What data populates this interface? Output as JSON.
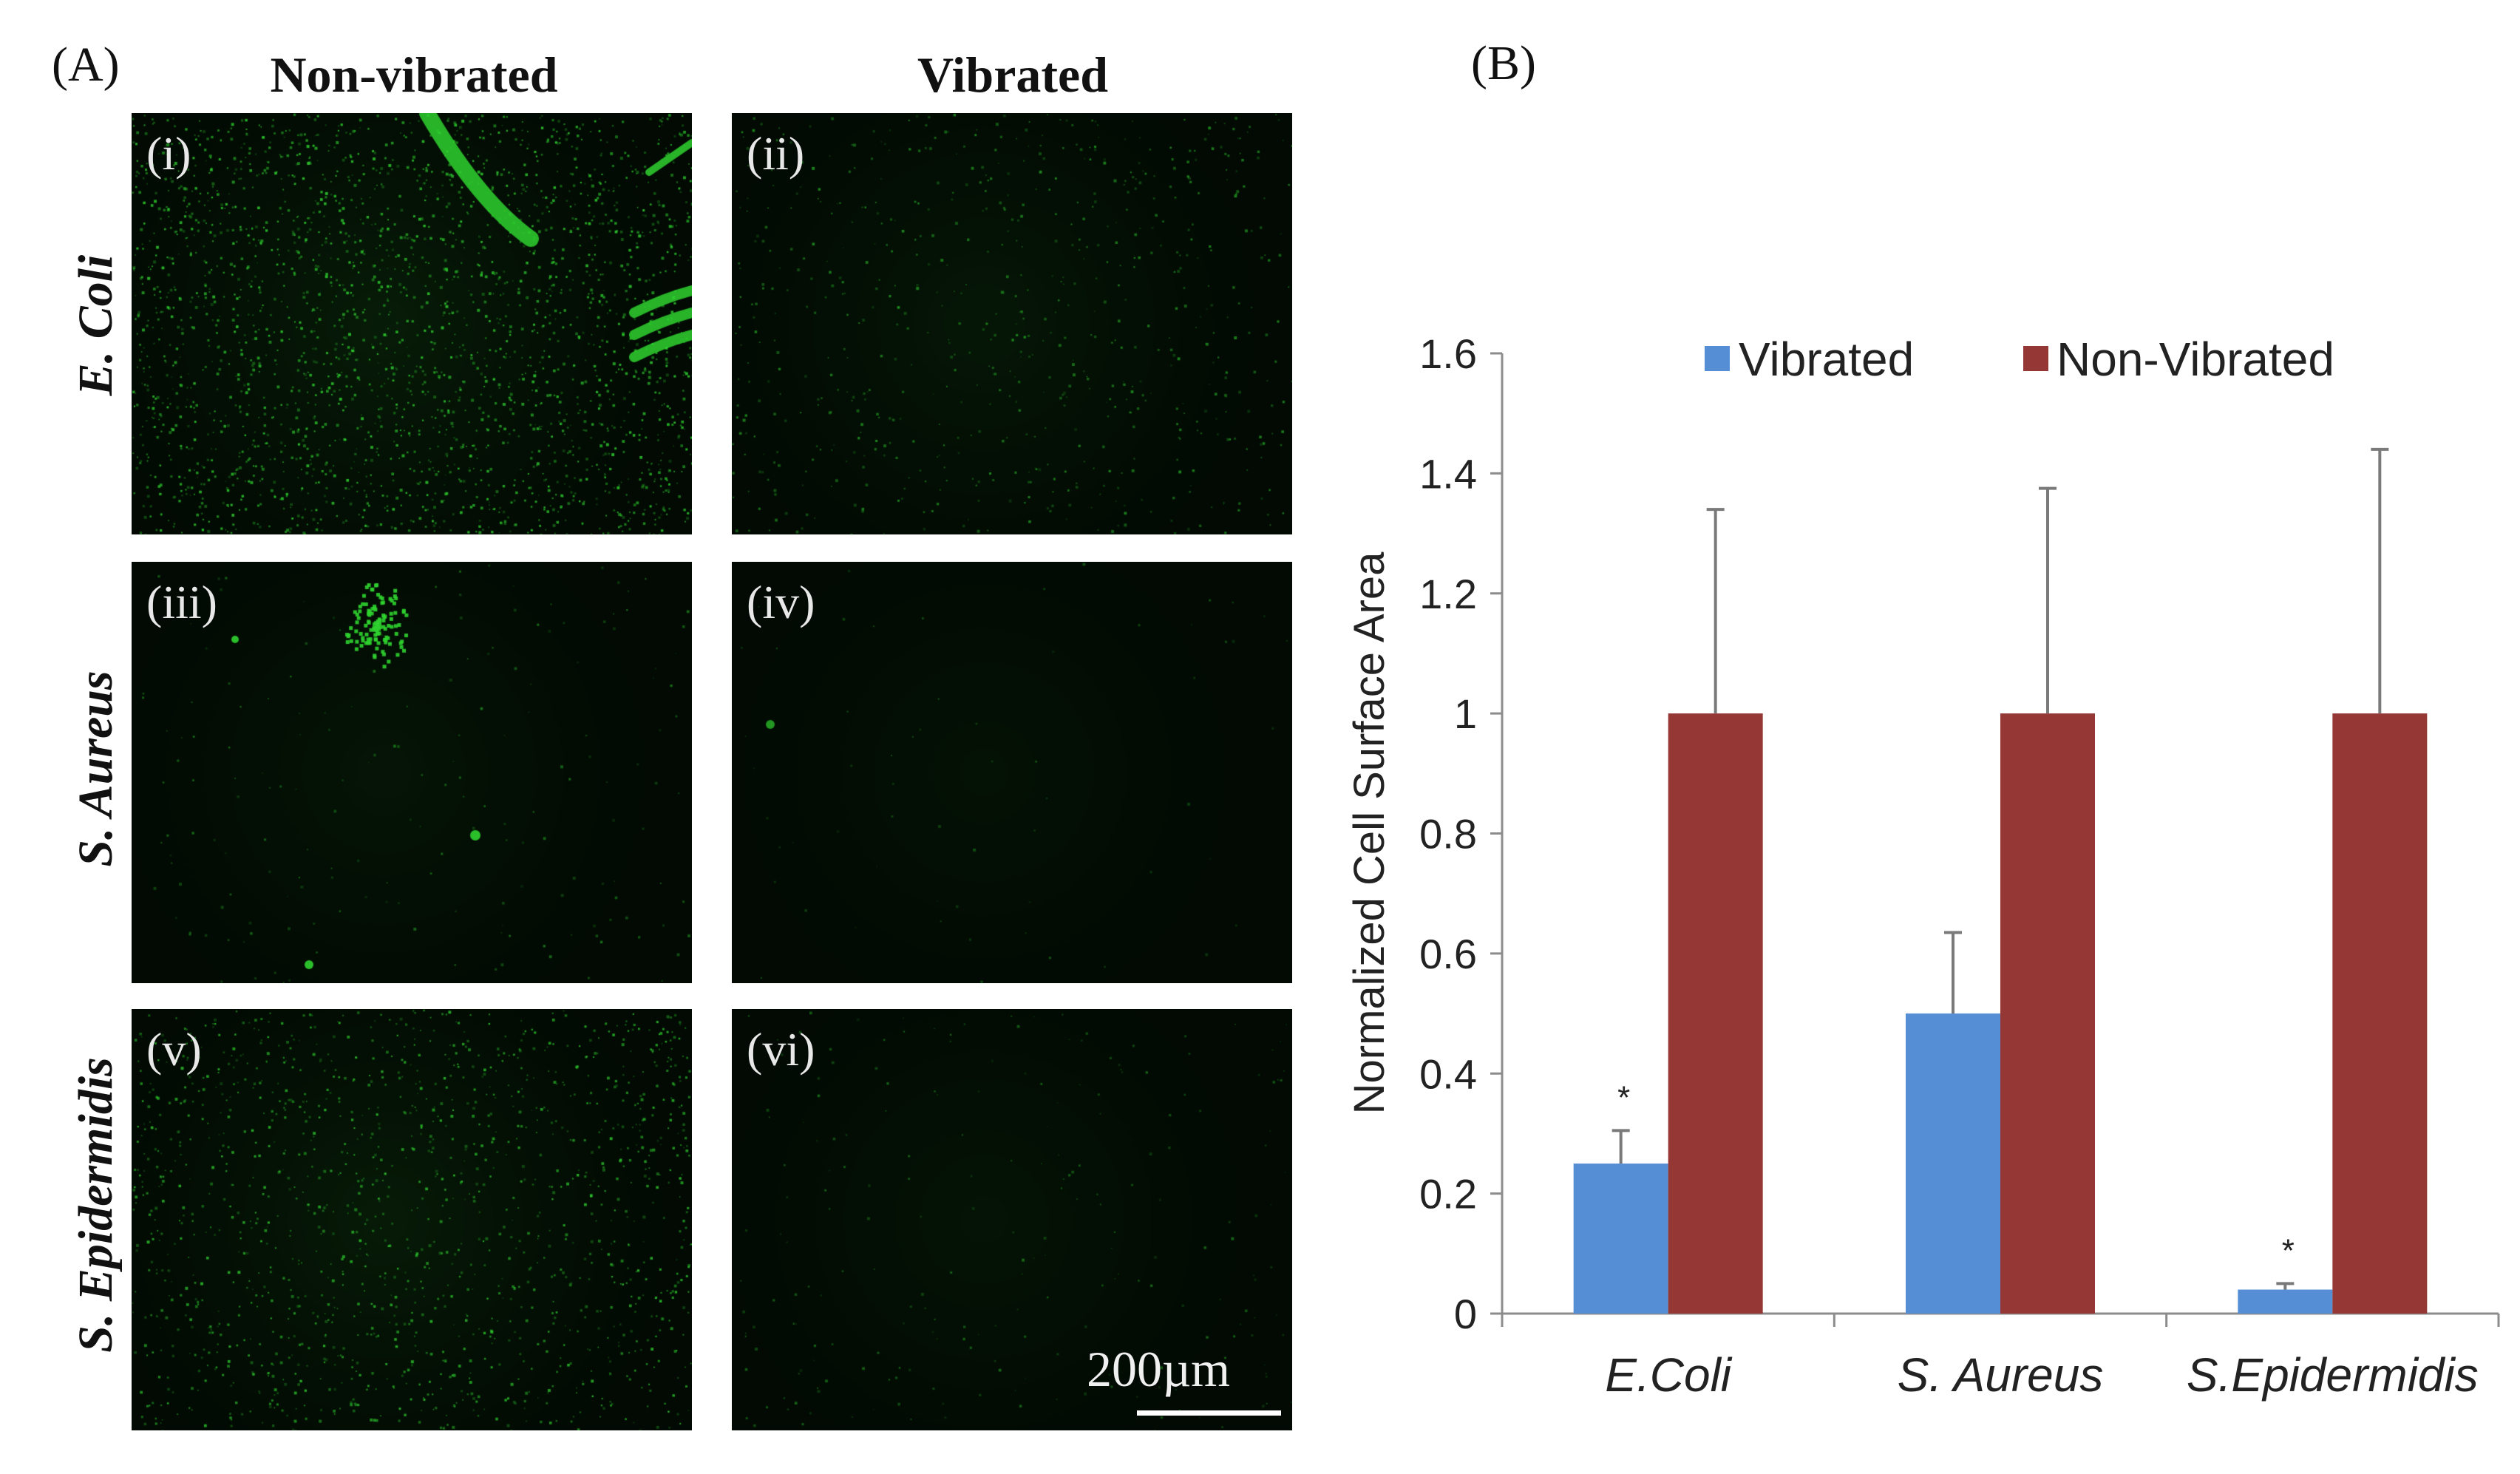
{
  "panelA": {
    "letter": "(A)",
    "col_headers": [
      "Non-vibrated",
      "Vibrated"
    ],
    "row_headers": [
      "E. Coli",
      "S. Aureus",
      "S. Epidermidis"
    ],
    "panel_tags": [
      "(i)",
      "(ii)",
      "(iii)",
      "(iv)",
      "(v)",
      "(vi)"
    ],
    "scale_bar_label": "200µm"
  },
  "panelB": {
    "letter": "(B)"
  },
  "colors": {
    "vibrated": "#558ED5",
    "non_vibrated": "#953735",
    "fluorescence": "#2fd12f"
  },
  "chart_data": {
    "type": "bar",
    "categories": [
      "E.Coli",
      "S. Aureus",
      "S.Epidermidis"
    ],
    "series": [
      {
        "name": "Vibrated",
        "values": [
          0.25,
          0.5,
          0.04
        ],
        "errors": [
          0.055,
          0.135,
          0.01
        ]
      },
      {
        "name": "Non-Vibrated",
        "values": [
          1,
          1,
          1
        ],
        "errors": [
          0.34,
          0.375,
          0.44
        ]
      }
    ],
    "significance": [
      "*",
      "",
      "*"
    ],
    "ylabel": "Normalized Cell Surface Area",
    "xlabel": "",
    "ylim": [
      0,
      1.6
    ],
    "yticks": [
      0,
      0.2,
      0.4,
      0.6,
      0.8,
      1,
      1.2,
      1.4,
      1.6
    ],
    "ytick_labels": [
      "0",
      "0.2",
      "0.4",
      "0.6",
      "0.8",
      "1",
      "1.2",
      "1.4",
      "1.6"
    ],
    "grid": false,
    "legend": "top"
  }
}
